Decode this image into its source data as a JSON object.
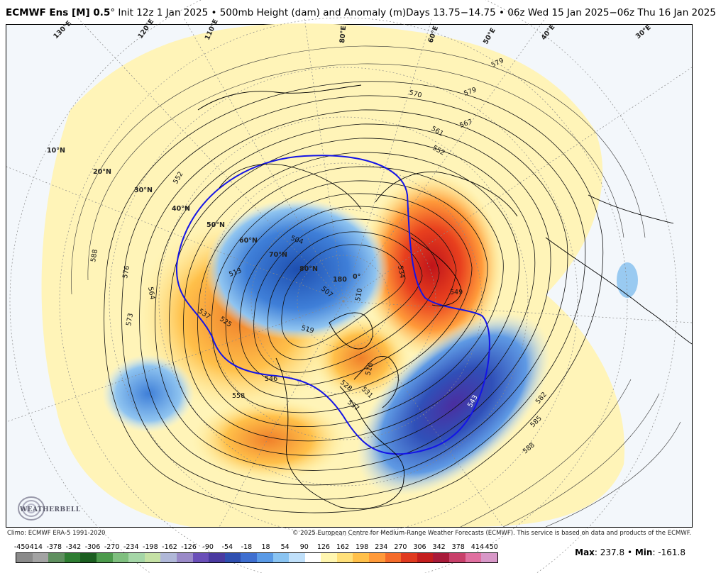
{
  "header": {
    "model": "ECMWF Ens [M] 0.5",
    "degree": "°",
    "init": "Init 12z 1 Jan 2025",
    "field": "500mb Height (dam) and Anomaly (m)",
    "valid": "Days 13.75−14.75 • 06z Wed 15 Jan 2025−06z Thu 16 Jan 2025"
  },
  "map": {
    "latitude_labels": [
      "10°N",
      "20°N",
      "30°N",
      "40°N",
      "50°N",
      "60°N",
      "70°N",
      "80°N"
    ],
    "longitude_labels": [
      "180",
      "0°",
      "130°E",
      "120°E",
      "110°E",
      "80°E",
      "60°E",
      "50°E",
      "40°E",
      "30°E"
    ],
    "contour_labels": [
      "588",
      "576",
      "573",
      "564",
      "537",
      "525",
      "513",
      "504",
      "507",
      "519",
      "510",
      "534",
      "549",
      "543",
      "546",
      "558",
      "582",
      "585",
      "588",
      "570",
      "579",
      "567",
      "561",
      "552",
      "531",
      "516",
      "537",
      "528"
    ],
    "highlight_contour_color": "#1414e6"
  },
  "footer": {
    "climo": "Climo: ECMWF ERA-5 1991-2020",
    "copyright": "© 2025 European Centre for Medium-Range Weather Forecasts (ECMWF). This service is based on data and products of the ECMWF."
  },
  "colorbar": {
    "ticks": [
      "-450",
      "-414",
      "-378",
      "-342",
      "-306",
      "-270",
      "-234",
      "-198",
      "-162",
      "-126",
      "-90",
      "-54",
      "-18",
      "18",
      "54",
      "90",
      "126",
      "162",
      "198",
      "234",
      "270",
      "306",
      "342",
      "378",
      "414",
      "450"
    ],
    "colors": [
      "#8a8a8a",
      "#a3a3a3",
      "#5f8f5f",
      "#2e7d32",
      "#1b5e20",
      "#4c9a4c",
      "#7fbf7f",
      "#a5d6a7",
      "#c5e1a5",
      "#b0b8d8",
      "#9a8ac8",
      "#6a4fb8",
      "#4a3aa0",
      "#2f4fb0",
      "#3f6fd0",
      "#5a9ae6",
      "#8ac4f2",
      "#c0e0fa",
      "#ffffff",
      "#fff6b0",
      "#ffe07a",
      "#ffc04a",
      "#ff9a3a",
      "#f46b2a",
      "#e03a1f",
      "#c41e1e",
      "#a81b3a",
      "#c8406a",
      "#e070a0",
      "#d898c8"
    ]
  },
  "stats": {
    "max_label": "Max",
    "max_value": ": 237.8",
    "separator": " • ",
    "min_label": "Min",
    "min_value": ": -161.8"
  },
  "logo": {
    "text": "WEATHERBELL"
  }
}
